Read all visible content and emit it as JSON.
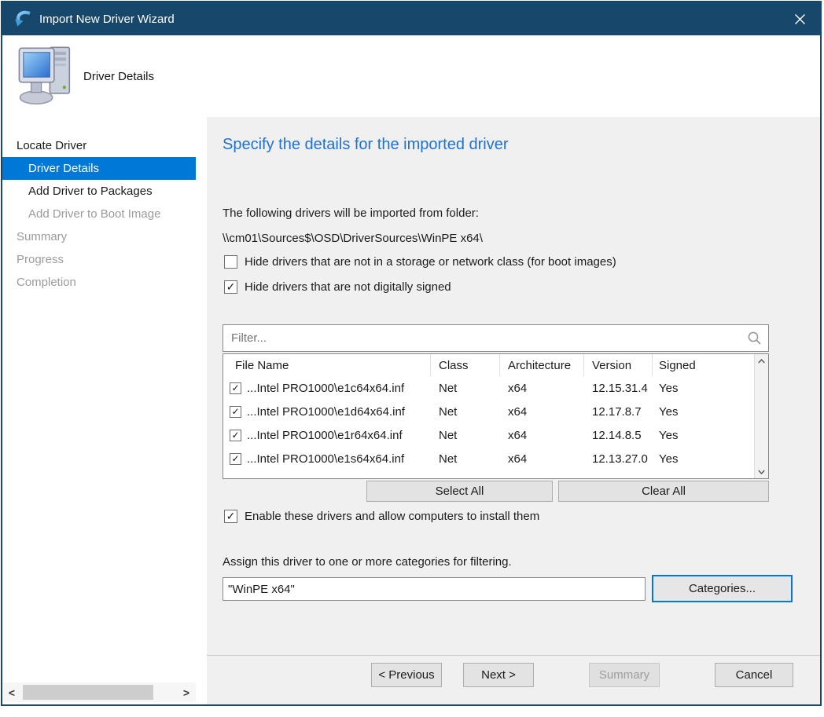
{
  "colors": {
    "titlebar": "#17476b",
    "accent": "#0078d7",
    "heading_blue": "#1f72d3",
    "content_bg": "#f0f0f0"
  },
  "titlebar": {
    "title": "Import New Driver Wizard"
  },
  "header": {
    "title": "Driver Details"
  },
  "sidebar": {
    "items": [
      {
        "label": "Locate Driver",
        "indent": 0,
        "state": "active"
      },
      {
        "label": "Driver Details",
        "indent": 1,
        "state": "selected"
      },
      {
        "label": "Add Driver to Packages",
        "indent": 1,
        "state": "active"
      },
      {
        "label": "Add Driver to Boot Image",
        "indent": 1,
        "state": "disabled"
      },
      {
        "label": "Summary",
        "indent": 0,
        "state": "disabled"
      },
      {
        "label": "Progress",
        "indent": 0,
        "state": "disabled"
      },
      {
        "label": "Completion",
        "indent": 0,
        "state": "disabled"
      }
    ]
  },
  "content": {
    "heading": "Specify the details for the imported driver",
    "intro": "The following drivers will be imported from folder:",
    "folder_path": "\\\\cm01\\Sources$\\OSD\\DriverSources\\WinPE x64\\",
    "hide_storage_checkbox": {
      "label": "Hide drivers that are not in a storage or network class (for boot images)",
      "checked": false
    },
    "hide_unsigned_checkbox": {
      "label": "Hide drivers that are not digitally signed",
      "checked": true
    },
    "filter": {
      "placeholder": "Filter..."
    },
    "table": {
      "columns": [
        "File Name",
        "Class",
        "Architecture",
        "Version",
        "Signed"
      ],
      "rows": [
        {
          "checked": true,
          "file": "...Intel PRO1000\\e1c64x64.inf",
          "class": "Net",
          "arch": "x64",
          "version": "12.15.31.4",
          "signed": "Yes"
        },
        {
          "checked": true,
          "file": "...Intel PRO1000\\e1d64x64.inf",
          "class": "Net",
          "arch": "x64",
          "version": "12.17.8.7",
          "signed": "Yes"
        },
        {
          "checked": true,
          "file": "...Intel PRO1000\\e1r64x64.inf",
          "class": "Net",
          "arch": "x64",
          "version": "12.14.8.5",
          "signed": "Yes"
        },
        {
          "checked": true,
          "file": "...Intel PRO1000\\e1s64x64.inf",
          "class": "Net",
          "arch": "x64",
          "version": "12.13.27.0",
          "signed": "Yes"
        }
      ]
    },
    "select_all": "Select All",
    "clear_all": "Clear All",
    "enable_checkbox": {
      "label": "Enable these drivers and allow computers to install them",
      "checked": true
    },
    "assign_label": "Assign this driver to one or more categories for filtering.",
    "category_value": "\"WinPE x64\"",
    "categories_button": "Categories..."
  },
  "footer": {
    "previous": "< Previous",
    "next": "Next >",
    "summary": "Summary",
    "cancel": "Cancel"
  }
}
